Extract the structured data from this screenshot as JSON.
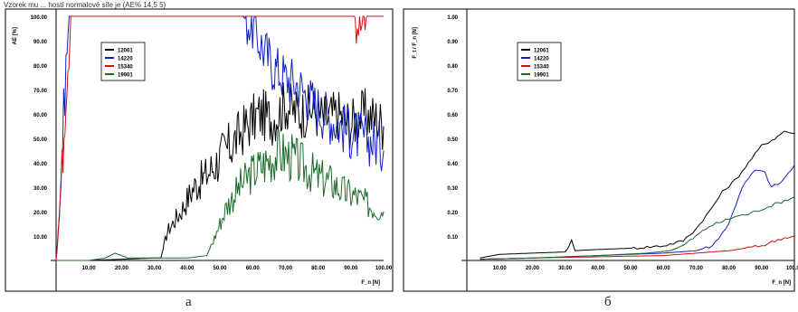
{
  "header_text": "Vzorek mu ... hostí normalové síle je (AE% 14,5 5)",
  "panel_labels": [
    "а",
    "б"
  ],
  "colors": {
    "12061": "#000000",
    "14220": "#1020c8",
    "15340": "#d01010",
    "19901": "#1a6b2a"
  },
  "chart_data": [
    {
      "type": "line",
      "ylabel": "AE [%]",
      "xlabel": "F_n [N]",
      "xlim": [
        0,
        100
      ],
      "ylim": [
        0,
        100
      ],
      "xticks": [
        "10.00",
        "20.00",
        "30.00",
        "40.00",
        "50.00",
        "60.00",
        "70.00",
        "80.00",
        "90.00",
        "100.00"
      ],
      "yticks": [
        "10.00",
        "20.00",
        "30.00",
        "40.00",
        "50.00",
        "60.00",
        "70.00",
        "80.00",
        "90.00",
        "100.00"
      ],
      "legend": "top-left",
      "series": [
        {
          "name": "12061",
          "points": [
            [
              0,
              0
            ],
            [
              5,
              0
            ],
            [
              10,
              0
            ],
            [
              20,
              0.5
            ],
            [
              30,
              1
            ],
            [
              32,
              1
            ],
            [
              34,
              12
            ],
            [
              38,
              20
            ],
            [
              42,
              30
            ],
            [
              46,
              35
            ],
            [
              50,
              42
            ],
            [
              54,
              48
            ],
            [
              58,
              55
            ],
            [
              62,
              60
            ],
            [
              66,
              58
            ],
            [
              70,
              64
            ],
            [
              74,
              60
            ],
            [
              78,
              62
            ],
            [
              82,
              58
            ],
            [
              86,
              60
            ],
            [
              90,
              56
            ],
            [
              94,
              60
            ],
            [
              98,
              58
            ],
            [
              100,
              55
            ]
          ]
        },
        {
          "name": "14220",
          "points": [
            [
              0,
              0
            ],
            [
              1,
              20
            ],
            [
              2,
              50
            ],
            [
              3,
              80
            ],
            [
              4,
              100
            ],
            [
              57,
              100
            ],
            [
              60,
              96
            ],
            [
              62,
              90
            ],
            [
              64,
              85
            ],
            [
              66,
              80
            ],
            [
              70,
              75
            ],
            [
              74,
              72
            ],
            [
              78,
              65
            ],
            [
              82,
              60
            ],
            [
              86,
              56
            ],
            [
              90,
              52
            ],
            [
              94,
              50
            ],
            [
              98,
              48
            ],
            [
              100,
              45
            ]
          ]
        },
        {
          "name": "15340",
          "points": [
            [
              0,
              0
            ],
            [
              1.5,
              30
            ],
            [
              3,
              70
            ],
            [
              4.5,
              100
            ],
            [
              91,
              100
            ],
            [
              93,
              96
            ],
            [
              95,
              100
            ],
            [
              100,
              100
            ]
          ]
        },
        {
          "name": "19901",
          "points": [
            [
              0,
              0
            ],
            [
              10,
              0
            ],
            [
              15,
              1
            ],
            [
              18,
              3
            ],
            [
              22,
              1
            ],
            [
              30,
              1
            ],
            [
              40,
              1
            ],
            [
              46,
              2
            ],
            [
              48,
              8
            ],
            [
              52,
              22
            ],
            [
              56,
              30
            ],
            [
              60,
              36
            ],
            [
              64,
              40
            ],
            [
              68,
              44
            ],
            [
              72,
              42
            ],
            [
              76,
              38
            ],
            [
              80,
              34
            ],
            [
              84,
              32
            ],
            [
              88,
              28
            ],
            [
              92,
              26
            ],
            [
              96,
              22
            ],
            [
              100,
              20
            ]
          ]
        }
      ]
    },
    {
      "type": "line",
      "ylabel": "F_t / F_n [N]",
      "xlabel": "F_n [N]",
      "xlim": [
        0,
        100
      ],
      "ylim": [
        0,
        1.0
      ],
      "xticks": [
        "10.00",
        "20.00",
        "30.00",
        "40.00",
        "50.00",
        "60.00",
        "70.00",
        "80.00",
        "90.00",
        "100.00"
      ],
      "yticks": [
        "0.10",
        "0.20",
        "0.30",
        "0.40",
        "0.50",
        "0.60",
        "0.70",
        "0.80",
        "0.90",
        "1.00"
      ],
      "legend": "top-left",
      "series": [
        {
          "name": "12061",
          "points": [
            [
              4,
              0.01
            ],
            [
              10,
              0.025
            ],
            [
              20,
              0.03
            ],
            [
              30,
              0.035
            ],
            [
              32,
              0.08
            ],
            [
              33,
              0.04
            ],
            [
              40,
              0.045
            ],
            [
              50,
              0.05
            ],
            [
              60,
              0.06
            ],
            [
              66,
              0.08
            ],
            [
              70,
              0.13
            ],
            [
              74,
              0.2
            ],
            [
              78,
              0.28
            ],
            [
              82,
              0.33
            ],
            [
              86,
              0.4
            ],
            [
              90,
              0.47
            ],
            [
              94,
              0.5
            ],
            [
              97,
              0.53
            ],
            [
              100,
              0.52
            ]
          ]
        },
        {
          "name": "14220",
          "points": [
            [
              4,
              0.005
            ],
            [
              20,
              0.01
            ],
            [
              40,
              0.02
            ],
            [
              60,
              0.03
            ],
            [
              70,
              0.04
            ],
            [
              75,
              0.06
            ],
            [
              80,
              0.15
            ],
            [
              84,
              0.3
            ],
            [
              88,
              0.37
            ],
            [
              91,
              0.36
            ],
            [
              93,
              0.3
            ],
            [
              96,
              0.32
            ],
            [
              100,
              0.39
            ]
          ]
        },
        {
          "name": "15340",
          "points": [
            [
              4,
              0.005
            ],
            [
              20,
              0.01
            ],
            [
              40,
              0.015
            ],
            [
              60,
              0.02
            ],
            [
              80,
              0.04
            ],
            [
              90,
              0.06
            ],
            [
              96,
              0.09
            ],
            [
              100,
              0.1
            ]
          ]
        },
        {
          "name": "19901",
          "points": [
            [
              4,
              0.005
            ],
            [
              20,
              0.01
            ],
            [
              40,
              0.02
            ],
            [
              55,
              0.03
            ],
            [
              62,
              0.04
            ],
            [
              66,
              0.06
            ],
            [
              70,
              0.1
            ],
            [
              74,
              0.14
            ],
            [
              78,
              0.16
            ],
            [
              82,
              0.18
            ],
            [
              86,
              0.19
            ],
            [
              90,
              0.21
            ],
            [
              94,
              0.23
            ],
            [
              98,
              0.25
            ],
            [
              100,
              0.26
            ]
          ]
        }
      ]
    }
  ]
}
